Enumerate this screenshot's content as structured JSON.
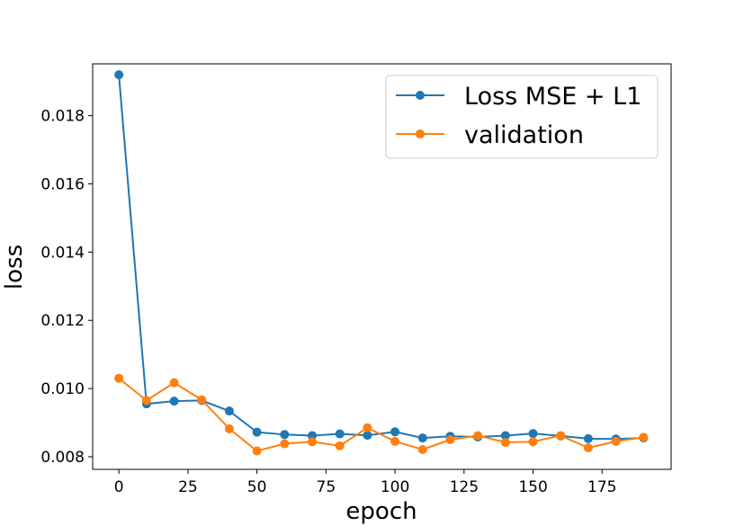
{
  "chart_data": {
    "type": "line",
    "xlabel": "epoch",
    "ylabel": "loss",
    "xlim": [
      -9.5,
      200
    ],
    "ylim": [
      0.00763,
      0.01952
    ],
    "xticks": [
      0,
      25,
      50,
      75,
      100,
      125,
      150,
      175
    ],
    "yticks": [
      0.008,
      0.01,
      0.012,
      0.014,
      0.016,
      0.018
    ],
    "ytick_labels": [
      "0.008",
      "0.010",
      "0.012",
      "0.014",
      "0.016",
      "0.018"
    ],
    "grid": false,
    "legend_position": "top-right",
    "x": [
      0,
      10,
      20,
      30,
      40,
      50,
      60,
      70,
      80,
      90,
      100,
      110,
      120,
      130,
      140,
      150,
      160,
      170,
      180,
      190
    ],
    "series": [
      {
        "name": "Loss MSE + L1",
        "color": "#1f77b4",
        "values": [
          0.0192,
          0.00955,
          0.00963,
          0.00965,
          0.00934,
          0.00872,
          0.00865,
          0.00862,
          0.00867,
          0.00863,
          0.00873,
          0.00855,
          0.0086,
          0.00858,
          0.00862,
          0.00868,
          0.00861,
          0.00853,
          0.00852,
          0.00855
        ]
      },
      {
        "name": "validation",
        "color": "#ff7f0e",
        "values": [
          0.0103,
          0.00965,
          0.01017,
          0.00967,
          0.00882,
          0.00817,
          0.00838,
          0.00844,
          0.00832,
          0.00885,
          0.00845,
          0.00821,
          0.0085,
          0.00862,
          0.00842,
          0.00844,
          0.00862,
          0.00826,
          0.00845,
          0.00857
        ]
      }
    ]
  }
}
